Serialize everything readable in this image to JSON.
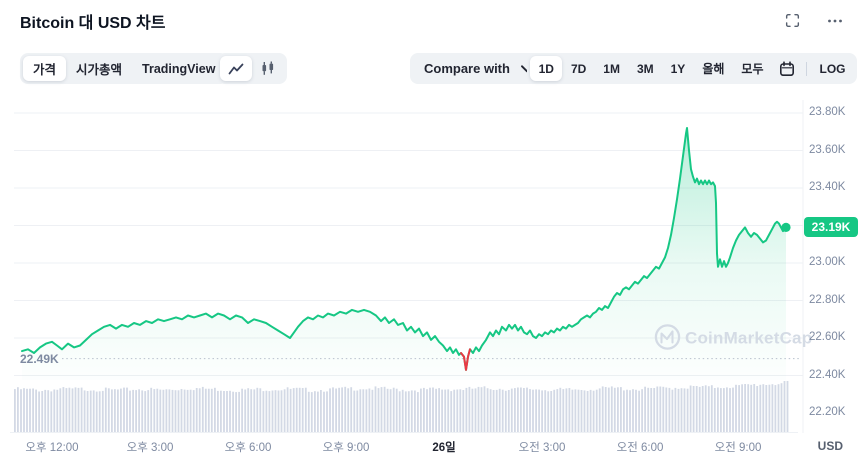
{
  "header": {
    "title": "Bitcoin 대 USD 차트"
  },
  "toolbar": {
    "tabs": [
      {
        "label": "가격",
        "active": true
      },
      {
        "label": "시가총액",
        "active": false
      },
      {
        "label": "TradingView",
        "active": false
      }
    ],
    "chart_types": [
      {
        "name": "line",
        "active": true
      },
      {
        "name": "candlestick",
        "active": false
      }
    ],
    "compare_label": "Compare with",
    "ranges": [
      {
        "label": "1D",
        "active": true
      },
      {
        "label": "7D",
        "active": false
      },
      {
        "label": "1M",
        "active": false
      },
      {
        "label": "3M",
        "active": false
      },
      {
        "label": "1Y",
        "active": false
      },
      {
        "label": "올해",
        "active": false
      },
      {
        "label": "모두",
        "active": false
      }
    ],
    "log_label": "LOG"
  },
  "watermark": {
    "text": "CoinMarketCap"
  },
  "chart_data": {
    "type": "line",
    "title": "Bitcoin 대 USD 차트",
    "currency": "USD",
    "legend": "none",
    "grid": true,
    "y_axis": {
      "min": 22.2,
      "max": 23.8,
      "step": 0.2,
      "unit": "K",
      "ticks": [
        {
          "price": 23.8,
          "label": "23.80K"
        },
        {
          "price": 23.6,
          "label": "23.60K"
        },
        {
          "price": 23.4,
          "label": "23.40K"
        },
        {
          "price": 23.0,
          "label": "23.00K"
        },
        {
          "price": 22.8,
          "label": "22.80K"
        },
        {
          "price": 22.6,
          "label": "22.60K"
        },
        {
          "price": 22.4,
          "label": "22.40K"
        },
        {
          "price": 22.2,
          "label": "22.20K"
        }
      ]
    },
    "x_ticks": [
      {
        "label": "오후 12:00",
        "emph": false
      },
      {
        "label": "오후 3:00",
        "emph": false
      },
      {
        "label": "오후 6:00",
        "emph": false
      },
      {
        "label": "오후 9:00",
        "emph": false
      },
      {
        "label": "26일",
        "emph": true
      },
      {
        "label": "오전 3:00",
        "emph": false
      },
      {
        "label": "오전 6:00",
        "emph": false
      },
      {
        "label": "오전 9:00",
        "emph": false
      }
    ],
    "open_line": {
      "price": 22.49,
      "label": "22.49K"
    },
    "last_price": {
      "price": 23.19,
      "label": "23.19K"
    },
    "colors": {
      "up": "#16c784",
      "down": "#ea3943",
      "volume": "#d3d9e5",
      "badge": "#16c784"
    },
    "series": [
      [
        22,
        22.53
      ],
      [
        28,
        22.54
      ],
      [
        34,
        22.52
      ],
      [
        40,
        22.55
      ],
      [
        46,
        22.57
      ],
      [
        52,
        22.58
      ],
      [
        57,
        22.56
      ],
      [
        62,
        22.54
      ],
      [
        68,
        22.57
      ],
      [
        74,
        22.55
      ],
      [
        80,
        22.56
      ],
      [
        86,
        22.59
      ],
      [
        92,
        22.62
      ],
      [
        98,
        22.64
      ],
      [
        104,
        22.66
      ],
      [
        110,
        22.67
      ],
      [
        116,
        22.65
      ],
      [
        122,
        22.67
      ],
      [
        128,
        22.66
      ],
      [
        134,
        22.68
      ],
      [
        140,
        22.67
      ],
      [
        146,
        22.69
      ],
      [
        152,
        22.68
      ],
      [
        158,
        22.7
      ],
      [
        164,
        22.69
      ],
      [
        170,
        22.7
      ],
      [
        176,
        22.71
      ],
      [
        182,
        22.7
      ],
      [
        188,
        22.72
      ],
      [
        194,
        22.71
      ],
      [
        200,
        22.72
      ],
      [
        206,
        22.73
      ],
      [
        212,
        22.71
      ],
      [
        218,
        22.73
      ],
      [
        224,
        22.72
      ],
      [
        230,
        22.7
      ],
      [
        236,
        22.72
      ],
      [
        242,
        22.71
      ],
      [
        248,
        22.68
      ],
      [
        254,
        22.7
      ],
      [
        260,
        22.69
      ],
      [
        266,
        22.68
      ],
      [
        272,
        22.66
      ],
      [
        278,
        22.64
      ],
      [
        284,
        22.62
      ],
      [
        290,
        22.6
      ],
      [
        294,
        22.63
      ],
      [
        298,
        22.66
      ],
      [
        303,
        22.69
      ],
      [
        308,
        22.71
      ],
      [
        313,
        22.7
      ],
      [
        318,
        22.72
      ],
      [
        323,
        22.71
      ],
      [
        328,
        22.73
      ],
      [
        334,
        22.72
      ],
      [
        340,
        22.74
      ],
      [
        346,
        22.73
      ],
      [
        352,
        22.75
      ],
      [
        358,
        22.74
      ],
      [
        364,
        22.75
      ],
      [
        370,
        22.74
      ],
      [
        376,
        22.72
      ],
      [
        381,
        22.69
      ],
      [
        385,
        22.71
      ],
      [
        389,
        22.68
      ],
      [
        394,
        22.7
      ],
      [
        398,
        22.67
      ],
      [
        403,
        22.68
      ],
      [
        407,
        22.64
      ],
      [
        411,
        22.66
      ],
      [
        415,
        22.63
      ],
      [
        419,
        22.65
      ],
      [
        423,
        22.61
      ],
      [
        427,
        22.63
      ],
      [
        431,
        22.59
      ],
      [
        435,
        22.61
      ],
      [
        439,
        22.58
      ],
      [
        443,
        22.56
      ],
      [
        447,
        22.53
      ],
      [
        450,
        22.55
      ],
      [
        453,
        22.52
      ],
      [
        456,
        22.54
      ],
      [
        459,
        22.51
      ],
      [
        461,
        22.52
      ],
      [
        464,
        22.5
      ],
      [
        466,
        22.43
      ],
      [
        468,
        22.5
      ],
      [
        470,
        22.54
      ],
      [
        473,
        22.52
      ],
      [
        476,
        22.55
      ],
      [
        479,
        22.53
      ],
      [
        482,
        22.56
      ],
      [
        486,
        22.59
      ],
      [
        490,
        22.63
      ],
      [
        493,
        22.61
      ],
      [
        496,
        22.64
      ],
      [
        499,
        22.62
      ],
      [
        502,
        22.66
      ],
      [
        506,
        22.64
      ],
      [
        509,
        22.67
      ],
      [
        512,
        22.65
      ],
      [
        515,
        22.67
      ],
      [
        518,
        22.64
      ],
      [
        521,
        22.66
      ],
      [
        524,
        22.63
      ],
      [
        527,
        22.62
      ],
      [
        530,
        22.64
      ],
      [
        533,
        22.61
      ],
      [
        536,
        22.6
      ],
      [
        539,
        22.62
      ],
      [
        542,
        22.61
      ],
      [
        545,
        22.63
      ],
      [
        548,
        22.62
      ],
      [
        551,
        22.64
      ],
      [
        554,
        22.63
      ],
      [
        557,
        22.65
      ],
      [
        560,
        22.64
      ],
      [
        563,
        22.66
      ],
      [
        566,
        22.65
      ],
      [
        569,
        22.67
      ],
      [
        572,
        22.66
      ],
      [
        575,
        22.67
      ],
      [
        578,
        22.68
      ],
      [
        581,
        22.7
      ],
      [
        584,
        22.71
      ],
      [
        587,
        22.72
      ],
      [
        590,
        22.71
      ],
      [
        593,
        22.73
      ],
      [
        596,
        22.74
      ],
      [
        599,
        22.76
      ],
      [
        602,
        22.75
      ],
      [
        605,
        22.77
      ],
      [
        608,
        22.76
      ],
      [
        611,
        22.79
      ],
      [
        614,
        22.82
      ],
      [
        617,
        22.84
      ],
      [
        620,
        22.83
      ],
      [
        623,
        22.86
      ],
      [
        626,
        22.87
      ],
      [
        629,
        22.86
      ],
      [
        632,
        22.88
      ],
      [
        635,
        22.9
      ],
      [
        638,
        22.89
      ],
      [
        641,
        22.91
      ],
      [
        644,
        22.93
      ],
      [
        647,
        22.92
      ],
      [
        650,
        22.94
      ],
      [
        653,
        22.96
      ],
      [
        656,
        22.98
      ],
      [
        659,
        22.97
      ],
      [
        662,
        23.0
      ],
      [
        665,
        23.03
      ],
      [
        668,
        23.08
      ],
      [
        671,
        23.15
      ],
      [
        674,
        23.24
      ],
      [
        677,
        23.34
      ],
      [
        680,
        23.45
      ],
      [
        683,
        23.57
      ],
      [
        686,
        23.69
      ],
      [
        687,
        23.72
      ],
      [
        689,
        23.6
      ],
      [
        691,
        23.5
      ],
      [
        693,
        23.46
      ],
      [
        695,
        23.43
      ],
      [
        697,
        23.45
      ],
      [
        699,
        23.42
      ],
      [
        701,
        23.44
      ],
      [
        703,
        23.42
      ],
      [
        705,
        23.44
      ],
      [
        707,
        23.42
      ],
      [
        709,
        23.44
      ],
      [
        711,
        23.42
      ],
      [
        713,
        23.43
      ],
      [
        715,
        23.41
      ],
      [
        716,
        23.32
      ],
      [
        717,
        23.05
      ],
      [
        718,
        22.98
      ],
      [
        720,
        23.02
      ],
      [
        722,
        22.98
      ],
      [
        724,
        23.01
      ],
      [
        726,
        22.98
      ],
      [
        728,
        23.0
      ],
      [
        730,
        23.03
      ],
      [
        733,
        23.08
      ],
      [
        736,
        23.12
      ],
      [
        739,
        23.15
      ],
      [
        742,
        23.17
      ],
      [
        745,
        23.19
      ],
      [
        748,
        23.16
      ],
      [
        751,
        23.14
      ],
      [
        754,
        23.16
      ],
      [
        757,
        23.15
      ],
      [
        760,
        23.13
      ],
      [
        763,
        23.11
      ],
      [
        766,
        23.12
      ],
      [
        769,
        23.15
      ],
      [
        772,
        23.18
      ],
      [
        775,
        23.21
      ],
      [
        777,
        23.22
      ],
      [
        779,
        23.21
      ],
      [
        781,
        23.19
      ],
      [
        783,
        23.17
      ],
      [
        786,
        23.19
      ]
    ],
    "red_segment": [
      [
        461,
        22.52
      ],
      [
        464,
        22.5
      ],
      [
        466,
        22.43
      ],
      [
        468,
        22.5
      ],
      [
        470,
        22.54
      ]
    ],
    "volume_profile": [
      44,
      43,
      44,
      44,
      43,
      44,
      43,
      45,
      44,
      43,
      44,
      44,
      43,
      44,
      45,
      44,
      43,
      44,
      44,
      45,
      44,
      44,
      43,
      44,
      45,
      44,
      45,
      46,
      46,
      47,
      49,
      50
    ]
  }
}
